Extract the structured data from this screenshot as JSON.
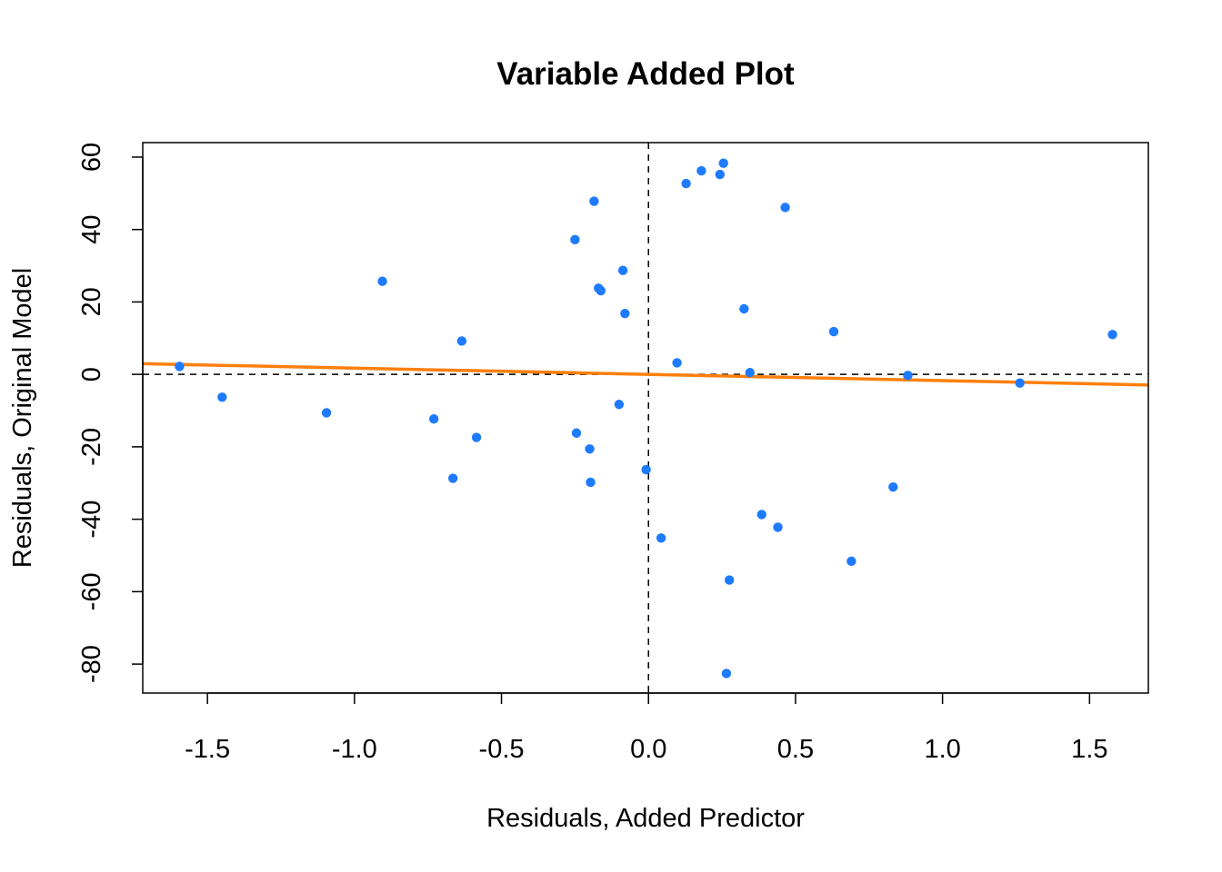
{
  "chart_data": {
    "type": "scatter",
    "title": "Variable Added Plot",
    "xlabel": "Residuals, Added Predictor",
    "ylabel": "Residuals, Original Model",
    "xlim": [
      -1.72,
      1.7
    ],
    "ylim": [
      -88,
      64
    ],
    "xticks": [
      "-1.5",
      "-1.0",
      "-0.5",
      "0.0",
      "0.5",
      "1.0",
      "1.5"
    ],
    "xtick_values": [
      -1.5,
      -1.0,
      -0.5,
      0.0,
      0.5,
      1.0,
      1.5
    ],
    "yticks": [
      "-80",
      "-60",
      "-40",
      "-20",
      "0",
      "20",
      "40",
      "60"
    ],
    "ytick_values": [
      -80,
      -60,
      -40,
      -20,
      0,
      20,
      40,
      60
    ],
    "points": [
      {
        "x": -1.595,
        "y": 2.2
      },
      {
        "x": -1.45,
        "y": -6.3
      },
      {
        "x": -1.095,
        "y": -10.6
      },
      {
        "x": -0.905,
        "y": 25.7
      },
      {
        "x": -0.73,
        "y": -12.3
      },
      {
        "x": -0.665,
        "y": -28.7
      },
      {
        "x": -0.635,
        "y": 9.2
      },
      {
        "x": -0.585,
        "y": -17.4
      },
      {
        "x": -0.25,
        "y": 37.2
      },
      {
        "x": -0.245,
        "y": -16.2
      },
      {
        "x": -0.2,
        "y": -20.6
      },
      {
        "x": -0.197,
        "y": -29.8
      },
      {
        "x": -0.185,
        "y": 47.8
      },
      {
        "x": -0.17,
        "y": 23.8
      },
      {
        "x": -0.162,
        "y": 23.1
      },
      {
        "x": -0.1,
        "y": -8.3
      },
      {
        "x": -0.087,
        "y": 28.7
      },
      {
        "x": -0.08,
        "y": 16.8
      },
      {
        "x": -0.008,
        "y": -26.3
      },
      {
        "x": 0.043,
        "y": -45.2
      },
      {
        "x": 0.097,
        "y": 3.2
      },
      {
        "x": 0.128,
        "y": 52.7
      },
      {
        "x": 0.18,
        "y": 56.2
      },
      {
        "x": 0.243,
        "y": 55.2
      },
      {
        "x": 0.255,
        "y": 58.3
      },
      {
        "x": 0.265,
        "y": -82.6
      },
      {
        "x": 0.275,
        "y": -56.8
      },
      {
        "x": 0.325,
        "y": 18.1
      },
      {
        "x": 0.345,
        "y": 0.5
      },
      {
        "x": 0.385,
        "y": -38.7
      },
      {
        "x": 0.44,
        "y": -42.2
      },
      {
        "x": 0.465,
        "y": 46.1
      },
      {
        "x": 0.63,
        "y": 11.8
      },
      {
        "x": 0.69,
        "y": -51.6
      },
      {
        "x": 0.832,
        "y": -31.1
      },
      {
        "x": 0.882,
        "y": -0.3
      },
      {
        "x": 1.263,
        "y": -2.4
      },
      {
        "x": 1.578,
        "y": 11.0
      }
    ],
    "fit_line": {
      "slope": -1.72,
      "intercept": 0
    },
    "reference_lines": {
      "h": 0,
      "v": 0
    },
    "point_color": "#1E7BFF",
    "line_color": "#FF7F0E",
    "grid": false,
    "legend": "none"
  }
}
